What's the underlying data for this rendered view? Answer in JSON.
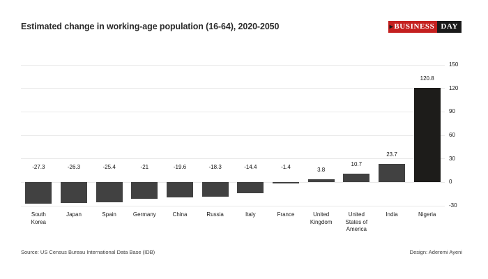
{
  "header": {
    "title": "Estimated change in working-age population (16-64), 2020-2050",
    "logo": {
      "arrow": "▸",
      "part1": "BUSINESS",
      "part2": "DAY",
      "red_color": "#c4201f",
      "black_color": "#1a1a1a"
    }
  },
  "chart_data": {
    "type": "bar",
    "title": "Estimated change in working-age population (16-64), 2020-2050",
    "categories": [
      "South Korea",
      "Japan",
      "Spain",
      "Germany",
      "China",
      "Russia",
      "Italy",
      "France",
      "United Kingdom",
      "United States of America",
      "India",
      "Nigeria"
    ],
    "category_lines": [
      [
        "South",
        "Korea"
      ],
      [
        "Japan"
      ],
      [
        "Spain"
      ],
      [
        "Germany"
      ],
      [
        "China"
      ],
      [
        "Russia"
      ],
      [
        "Italy"
      ],
      [
        "France"
      ],
      [
        "United",
        "Kingdom"
      ],
      [
        "United",
        "States of",
        "America"
      ],
      [
        "India"
      ],
      [
        "Nigeria"
      ]
    ],
    "values": [
      -27.3,
      -26.3,
      -25.4,
      -21,
      -19.6,
      -18.3,
      -14.4,
      -1.4,
      3.8,
      10.7,
      23.7,
      120.8
    ],
    "value_labels": [
      "-27.3",
      "-26.3",
      "-25.4",
      "-21",
      "-19.6",
      "-18.3",
      "-14.4",
      "-1.4",
      "3.8",
      "10.7",
      "23.7",
      "120.8"
    ],
    "xlabel": "",
    "ylabel": "",
    "ylim": [
      -30,
      150
    ],
    "y_ticks": [
      150,
      120,
      90,
      60,
      30,
      0,
      -30
    ],
    "axis_side": "right",
    "grid": true,
    "legend": false,
    "bar_color": "#414141",
    "highlight_index": 11,
    "highlight_color": "#1d1c1a",
    "grid_color": "#e8e8e8"
  },
  "footer": {
    "source": "Source:  US Census Bureau International Data Base (IDB)",
    "design": "Design: Aderemi Ayeni"
  }
}
